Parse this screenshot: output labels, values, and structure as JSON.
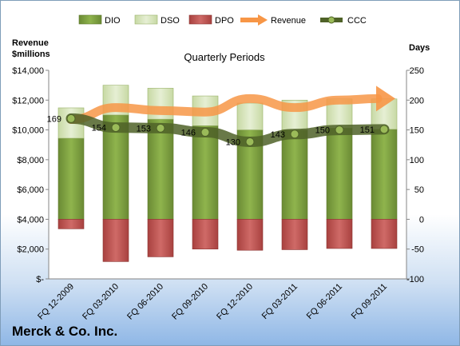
{
  "chart_data": {
    "type": "bar",
    "title": "Quarterly Periods",
    "company": "Merck & Co. Inc.",
    "left_axis_label_line1": "Revenue",
    "left_axis_label_line2": "$millions",
    "right_axis_label": "Days",
    "categories": [
      "FQ 12-2009",
      "FQ 03-2010",
      "FQ 06-2010",
      "FQ 09-2010",
      "FQ 12-2010",
      "FQ 03-2011",
      "FQ 06-2011",
      "FQ 09-2011"
    ],
    "left_axis": {
      "ylim": [
        0,
        14000
      ],
      "ticks": [
        "$-",
        "$2,000",
        "$4,000",
        "$6,000",
        "$8,000",
        "$10,000",
        "$12,000",
        "$14,000"
      ]
    },
    "right_axis": {
      "ylim": [
        -100,
        250
      ],
      "ticks": [
        "-100",
        "-50",
        "0",
        "50",
        "100",
        "150",
        "200",
        "250"
      ]
    },
    "series": [
      {
        "name": "DIO",
        "axis": "right",
        "color": "#77933c",
        "values": [
          136,
          175,
          168,
          157,
          150,
          150,
          153,
          151
        ]
      },
      {
        "name": "DSO",
        "axis": "right",
        "color": "#d7e4bd",
        "values": [
          51,
          50,
          52,
          50,
          45,
          50,
          49,
          51
        ]
      },
      {
        "name": "DPO",
        "axis": "right",
        "color": "#c0504d",
        "values": [
          -16,
          -71,
          -63,
          -50,
          -52,
          -51,
          -49,
          -49
        ]
      },
      {
        "name": "Revenue",
        "axis": "left",
        "color": "#f79646",
        "values": [
          10700,
          11500,
          11300,
          11200,
          12100,
          11500,
          12000,
          12100
        ]
      },
      {
        "name": "CCC",
        "axis": "right",
        "color": "#4f6228",
        "values": [
          169,
          154,
          153,
          146,
          130,
          143,
          150,
          151
        ]
      }
    ],
    "ccc_labels": [
      "169",
      "154",
      "153",
      "146",
      "130",
      "143",
      "150",
      "151"
    ],
    "legend_position": "top",
    "grid": false
  }
}
